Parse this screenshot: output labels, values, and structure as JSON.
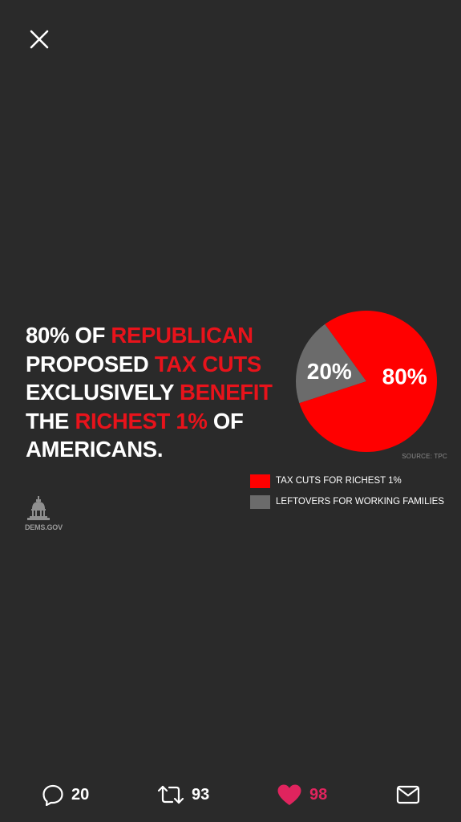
{
  "headline": {
    "segments": [
      {
        "text": "80% OF ",
        "red": false
      },
      {
        "text": "REPUBLICAN",
        "red": true
      },
      {
        "text": " PROPOSED ",
        "red": false
      },
      {
        "text": "TAX CUTS",
        "red": true
      },
      {
        "text": " EXCLUSIVELY ",
        "red": false
      },
      {
        "text": "BENEFIT",
        "red": true
      },
      {
        "text": " THE ",
        "red": false
      },
      {
        "text": "RICHEST 1%",
        "red": true
      },
      {
        "text": " OF AMERICANS.",
        "red": false
      }
    ]
  },
  "chart_data": {
    "type": "pie",
    "slices": [
      {
        "label": "TAX CUTS FOR RICHEST 1%",
        "value": 80,
        "display": "80%",
        "color": "#ff0000"
      },
      {
        "label": "LEFTOVERS FOR WORKING FAMILIES",
        "value": 20,
        "display": "20%",
        "color": "#6b6b6b"
      }
    ],
    "source": "SOURCE: TPC",
    "legend_position": "below-right"
  },
  "logo": {
    "text": "DEMS.GOV",
    "icon": "capitol-dome-icon"
  },
  "actions": {
    "reply": {
      "icon": "reply-icon",
      "count": "20"
    },
    "retweet": {
      "icon": "retweet-icon",
      "count": "93"
    },
    "like": {
      "icon": "heart-icon",
      "count": "98",
      "liked": true,
      "color": "#e0245e"
    },
    "share": {
      "icon": "envelope-icon"
    }
  },
  "colors": {
    "background": "#2a2a2a",
    "accent_red": "#e8131b",
    "like_pink": "#e0245e"
  }
}
